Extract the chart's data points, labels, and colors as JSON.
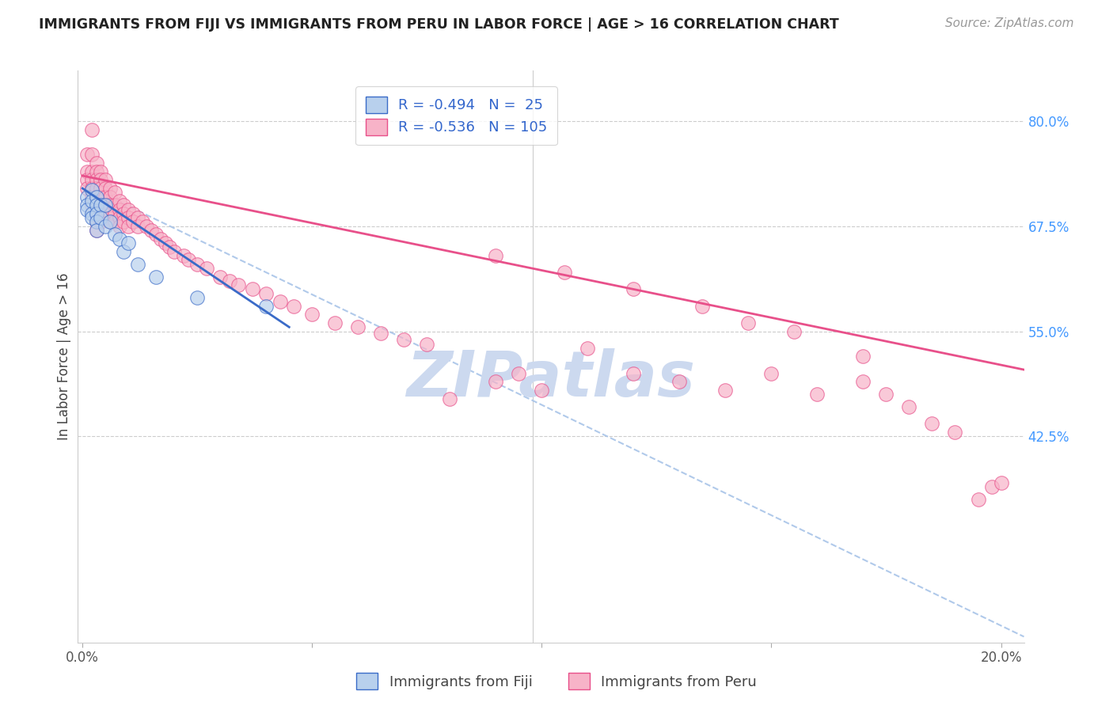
{
  "title": "IMMIGRANTS FROM FIJI VS IMMIGRANTS FROM PERU IN LABOR FORCE | AGE > 16 CORRELATION CHART",
  "source_text": "Source: ZipAtlas.com",
  "ylabel": "In Labor Force | Age > 16",
  "fiji_R": -0.494,
  "fiji_N": 25,
  "peru_R": -0.536,
  "peru_N": 105,
  "fiji_color": "#b8d0ed",
  "peru_color": "#f7b3c8",
  "fiji_line_color": "#3a6bc8",
  "peru_line_color": "#e8508a",
  "fiji_dashed_color": "#a8c4e8",
  "watermark_color": "#ccd9ef",
  "legend_fiji_label": "Immigrants from Fiji",
  "legend_peru_label": "Immigrants from Peru",
  "xlim_min": -0.001,
  "xlim_max": 0.205,
  "ylim_min": 0.18,
  "ylim_max": 0.86,
  "x_ticks": [
    0.0,
    0.05,
    0.1,
    0.15,
    0.2
  ],
  "x_tick_labels": [
    "0.0%",
    "",
    "",
    "",
    "20.0%"
  ],
  "y_ticks_right": [
    0.8,
    0.675,
    0.55,
    0.425
  ],
  "y_tick_labels_right": [
    "80.0%",
    "67.5%",
    "55.0%",
    "42.5%"
  ],
  "fiji_x": [
    0.001,
    0.001,
    0.001,
    0.002,
    0.002,
    0.002,
    0.002,
    0.003,
    0.003,
    0.003,
    0.003,
    0.003,
    0.004,
    0.004,
    0.005,
    0.005,
    0.006,
    0.007,
    0.008,
    0.009,
    0.01,
    0.012,
    0.016,
    0.025,
    0.04
  ],
  "fiji_y": [
    0.71,
    0.7,
    0.695,
    0.718,
    0.705,
    0.69,
    0.685,
    0.71,
    0.7,
    0.69,
    0.68,
    0.67,
    0.7,
    0.685,
    0.7,
    0.675,
    0.68,
    0.665,
    0.66,
    0.645,
    0.655,
    0.63,
    0.615,
    0.59,
    0.58
  ],
  "peru_x": [
    0.001,
    0.001,
    0.001,
    0.001,
    0.002,
    0.002,
    0.002,
    0.002,
    0.002,
    0.002,
    0.002,
    0.003,
    0.003,
    0.003,
    0.003,
    0.003,
    0.003,
    0.003,
    0.003,
    0.003,
    0.004,
    0.004,
    0.004,
    0.004,
    0.004,
    0.004,
    0.004,
    0.005,
    0.005,
    0.005,
    0.005,
    0.005,
    0.006,
    0.006,
    0.006,
    0.006,
    0.006,
    0.007,
    0.007,
    0.007,
    0.007,
    0.008,
    0.008,
    0.008,
    0.008,
    0.009,
    0.009,
    0.009,
    0.01,
    0.01,
    0.01,
    0.011,
    0.011,
    0.012,
    0.012,
    0.013,
    0.014,
    0.015,
    0.016,
    0.017,
    0.018,
    0.019,
    0.02,
    0.022,
    0.023,
    0.025,
    0.027,
    0.03,
    0.032,
    0.034,
    0.037,
    0.04,
    0.043,
    0.046,
    0.05,
    0.055,
    0.06,
    0.065,
    0.07,
    0.075,
    0.08,
    0.09,
    0.095,
    0.1,
    0.11,
    0.12,
    0.13,
    0.14,
    0.15,
    0.16,
    0.17,
    0.175,
    0.18,
    0.185,
    0.19,
    0.195,
    0.198,
    0.2,
    0.17,
    0.155,
    0.145,
    0.135,
    0.12,
    0.105,
    0.09
  ],
  "peru_y": [
    0.76,
    0.74,
    0.73,
    0.72,
    0.79,
    0.76,
    0.74,
    0.73,
    0.72,
    0.71,
    0.7,
    0.75,
    0.74,
    0.73,
    0.72,
    0.71,
    0.7,
    0.69,
    0.68,
    0.67,
    0.74,
    0.73,
    0.72,
    0.71,
    0.7,
    0.69,
    0.68,
    0.73,
    0.72,
    0.71,
    0.7,
    0.69,
    0.72,
    0.71,
    0.7,
    0.69,
    0.68,
    0.715,
    0.7,
    0.69,
    0.68,
    0.705,
    0.695,
    0.685,
    0.675,
    0.7,
    0.69,
    0.68,
    0.695,
    0.685,
    0.675,
    0.69,
    0.68,
    0.685,
    0.675,
    0.68,
    0.675,
    0.67,
    0.665,
    0.66,
    0.655,
    0.65,
    0.645,
    0.64,
    0.635,
    0.63,
    0.625,
    0.615,
    0.61,
    0.605,
    0.6,
    0.595,
    0.585,
    0.58,
    0.57,
    0.56,
    0.555,
    0.548,
    0.54,
    0.535,
    0.47,
    0.49,
    0.5,
    0.48,
    0.53,
    0.5,
    0.49,
    0.48,
    0.5,
    0.475,
    0.49,
    0.475,
    0.46,
    0.44,
    0.43,
    0.35,
    0.365,
    0.37,
    0.52,
    0.55,
    0.56,
    0.58,
    0.6,
    0.62,
    0.64
  ]
}
